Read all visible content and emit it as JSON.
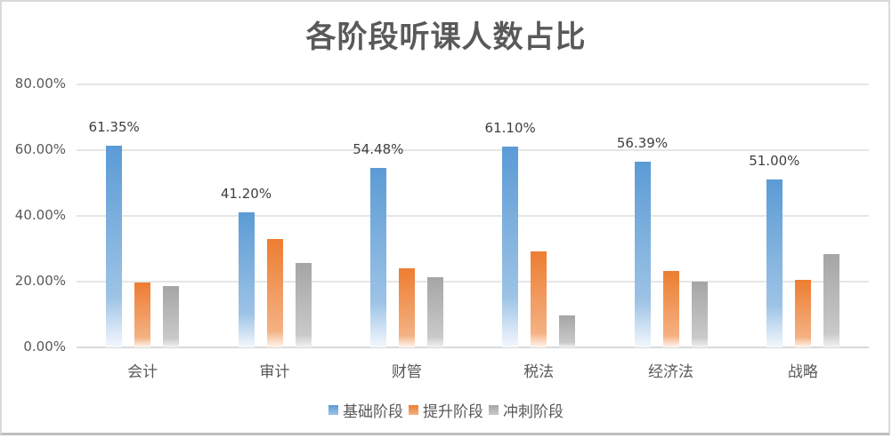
{
  "chart_data": {
    "type": "bar",
    "title": "各阶段听课人数占比",
    "xlabel": "",
    "ylabel": "",
    "ylim": [
      0,
      80
    ],
    "yticks": [
      "0.00%",
      "20.00%",
      "40.00%",
      "60.00%",
      "80.00%"
    ],
    "grid": true,
    "legend_position": "bottom",
    "categories": [
      "会计",
      "审计",
      "财管",
      "税法",
      "经济法",
      "战略"
    ],
    "series": [
      {
        "name": "基础阶段",
        "color": "#5b9bd5",
        "values": [
          61.35,
          41.2,
          54.48,
          61.1,
          56.39,
          51.0
        ],
        "labels": [
          "61.35%",
          "41.20%",
          "54.48%",
          "61.10%",
          "56.39%",
          "51.00%"
        ]
      },
      {
        "name": "提升阶段",
        "color": "#ed7d31",
        "values": [
          19.7,
          33.0,
          24.1,
          29.2,
          23.3,
          20.6
        ]
      },
      {
        "name": "冲刺阶段",
        "color": "#a5a5a5",
        "values": [
          18.7,
          25.7,
          21.4,
          9.6,
          20.1,
          28.3
        ]
      }
    ]
  },
  "legend": [
    {
      "label": "基础阶段",
      "color": "#5b9bd5"
    },
    {
      "label": "提升阶段",
      "color": "#ed7d31"
    },
    {
      "label": "冲刺阶段",
      "color": "#a5a5a5"
    }
  ]
}
